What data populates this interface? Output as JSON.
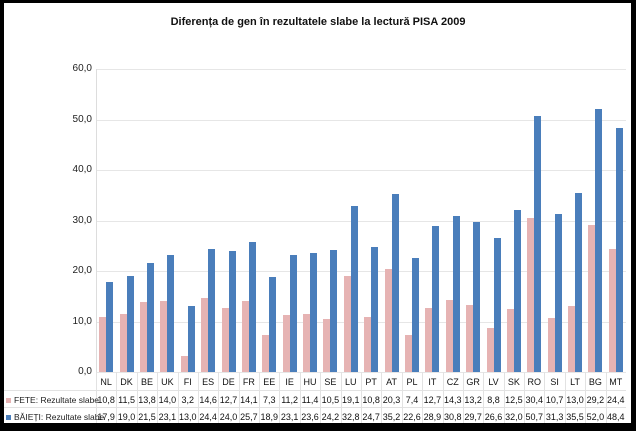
{
  "chart_data": {
    "type": "bar",
    "title": "Diferența de gen în rezultatele slabe la lectură PISA 2009",
    "xlabel": "",
    "ylabel": "",
    "ylim": [
      0,
      60
    ],
    "yticks": [
      "0,0",
      "10,0",
      "20,0",
      "30,0",
      "40,0",
      "50,0",
      "60,0"
    ],
    "grid": true,
    "legend_position": "data-table",
    "categories": [
      "NL",
      "DK",
      "BE",
      "UK",
      "FI",
      "ES",
      "DE",
      "FR",
      "EE",
      "IE",
      "HU",
      "SE",
      "LU",
      "PT",
      "AT",
      "PL",
      "IT",
      "CZ",
      "GR",
      "LV",
      "SK",
      "RO",
      "SI",
      "LT",
      "BG",
      "MT"
    ],
    "series": [
      {
        "name": "FETE: Rezultate slabe",
        "color": "#e6b3b3",
        "values": [
          10.8,
          11.5,
          13.8,
          14.0,
          3.2,
          14.6,
          12.7,
          14.1,
          7.3,
          11.2,
          11.4,
          10.5,
          19.1,
          10.8,
          20.3,
          7.4,
          12.7,
          14.3,
          13.2,
          8.8,
          12.5,
          30.4,
          10.7,
          13.0,
          29.2,
          24.4
        ],
        "labels": [
          "10,8",
          "11,5",
          "13,8",
          "14,0",
          "3,2",
          "14,6",
          "12,7",
          "14,1",
          "7,3",
          "11,2",
          "11,4",
          "10,5",
          "19,1",
          "10,8",
          "20,3",
          "7,4",
          "12,7",
          "14,3",
          "13,2",
          "8,8",
          "12,5",
          "30,4",
          "10,7",
          "13,0",
          "29,2",
          "24,4"
        ]
      },
      {
        "name": "BĂIEȚI: Rezultate slabe",
        "color": "#4a7ebb",
        "values": [
          17.9,
          19.0,
          21.5,
          23.1,
          13.0,
          24.4,
          24.0,
          25.7,
          18.9,
          23.1,
          23.6,
          24.2,
          32.8,
          24.7,
          35.2,
          22.6,
          28.9,
          30.8,
          29.7,
          26.6,
          32.0,
          50.7,
          31.3,
          35.5,
          52.0,
          48.4
        ],
        "labels": [
          "17,9",
          "19,0",
          "21,5",
          "23,1",
          "13,0",
          "24,4",
          "24,0",
          "25,7",
          "18,9",
          "23,1",
          "23,6",
          "24,2",
          "32,8",
          "24,7",
          "35,2",
          "22,6",
          "28,9",
          "30,8",
          "29,7",
          "26,6",
          "32,0",
          "50,7",
          "31,3",
          "35,5",
          "52,0",
          "48,4"
        ]
      }
    ]
  }
}
